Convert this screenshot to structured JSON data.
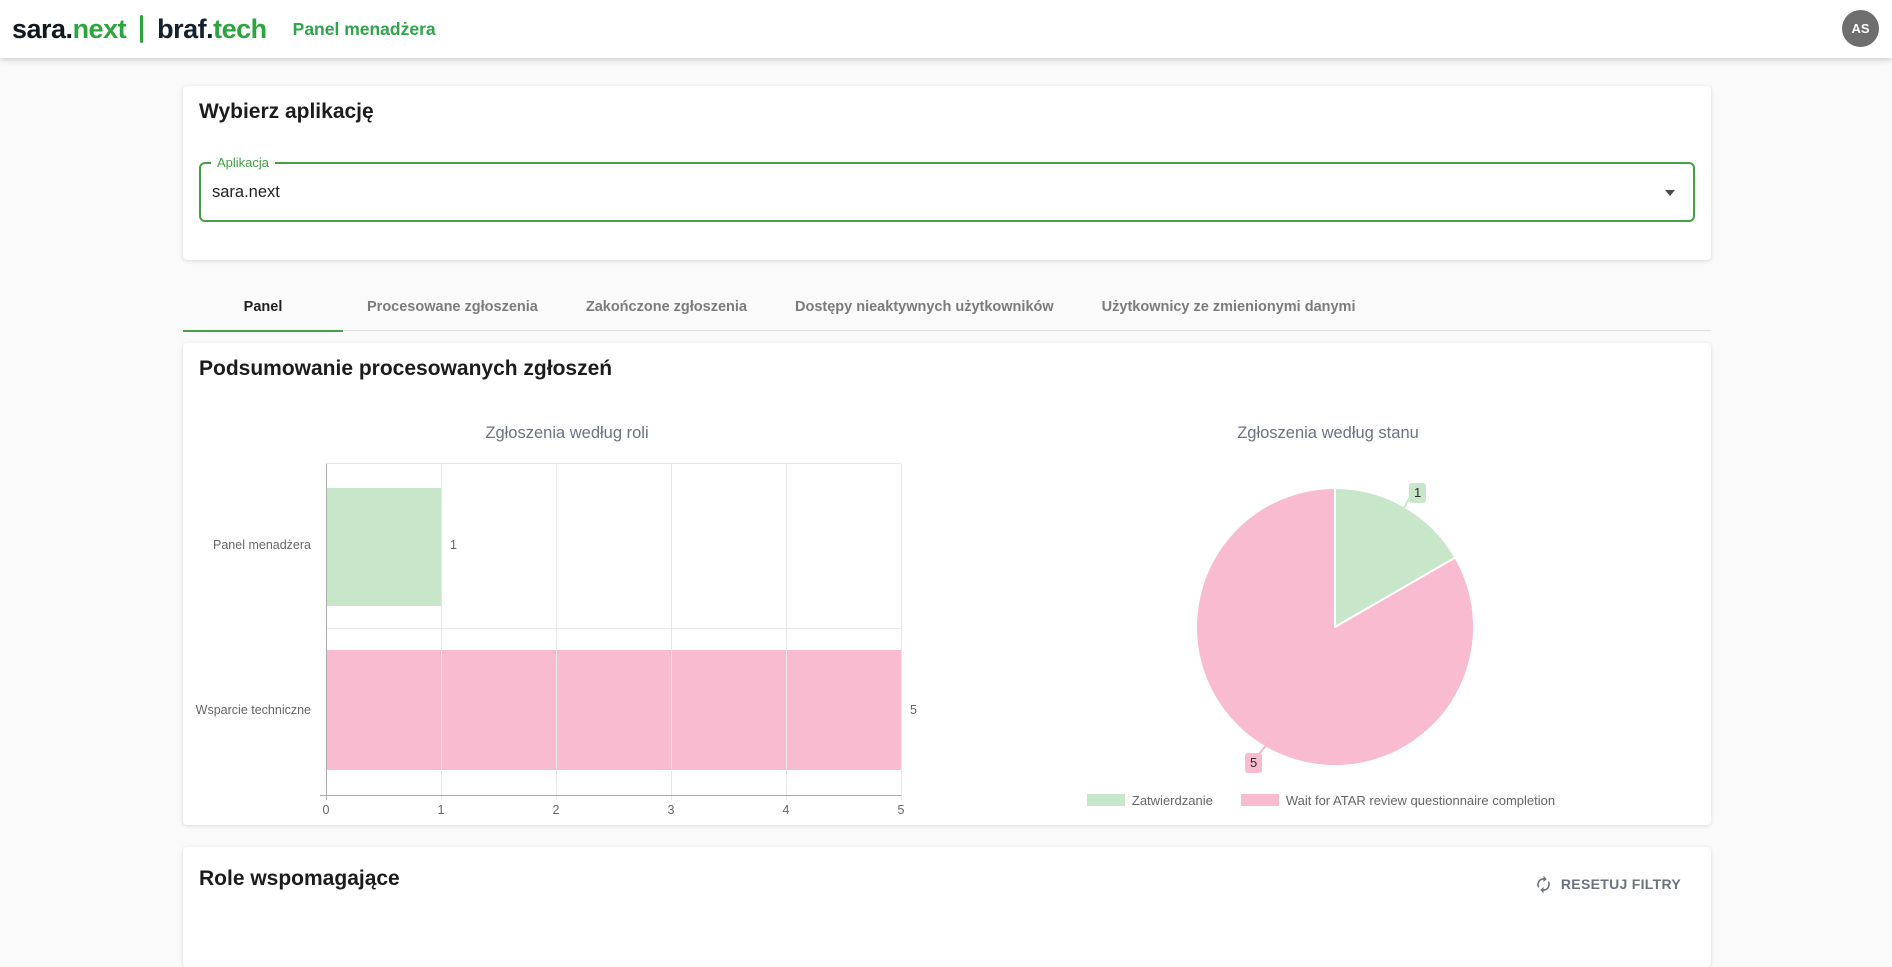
{
  "header": {
    "brand1_dark": "sara.",
    "brand1_green": "next",
    "brand2_dark": "braf.",
    "brand2_green": "tech",
    "app_title": "Panel menadżera",
    "avatar_initials": "AS"
  },
  "app_select_card": {
    "title": "Wybierz aplikację",
    "field_label": "Aplikacja",
    "field_value": "sara.next"
  },
  "tabs": [
    {
      "label": "Panel",
      "active": true
    },
    {
      "label": "Procesowane zgłoszenia",
      "active": false
    },
    {
      "label": "Zakończone zgłoszenia",
      "active": false
    },
    {
      "label": "Dostępy nieaktywnych użytkowników",
      "active": false
    },
    {
      "label": "Użytkownicy ze zmienionymi danymi",
      "active": false
    }
  ],
  "summary_card": {
    "title": "Podsumowanie procesowanych zgłoszeń"
  },
  "chart_data": [
    {
      "type": "bar",
      "orientation": "horizontal",
      "title": "Zgłoszenia według roli",
      "categories": [
        "Panel menadżera",
        "Wsparcie techniczne"
      ],
      "values": [
        1,
        5
      ],
      "value_labels": [
        "1",
        "5"
      ],
      "colors": [
        "#c8e6c9",
        "#f8bbd0"
      ],
      "xlim": [
        0,
        5
      ],
      "x_ticks": [
        "0",
        "1",
        "2",
        "3",
        "4",
        "5"
      ],
      "grid": true
    },
    {
      "type": "pie",
      "title": "Zgłoszenia według stanu",
      "labels": [
        "Zatwierdzanie",
        "Wait for ATAR review questionnaire completion"
      ],
      "values": [
        1,
        5
      ],
      "data_labels": [
        "1",
        "5"
      ],
      "colors": [
        "#c8e6c9",
        "#f8bbd0"
      ],
      "legend_position": "bottom",
      "start_angle_deg": -90
    }
  ],
  "roles_card": {
    "title": "Role wspomagające",
    "reset_button": "RESETUJ FILTRY"
  },
  "colors": {
    "accent_green": "#43a047",
    "logo_green": "#2ca53d",
    "header_title_green": "#2fa44a",
    "series_green": "#c8e6c9",
    "series_pink": "#f8bbd0",
    "grid_line": "#e8e8e8",
    "axis_line": "#ababab",
    "chart_text": "#666666",
    "muted_text": "#6b7280",
    "page_background": "#fafafa"
  }
}
